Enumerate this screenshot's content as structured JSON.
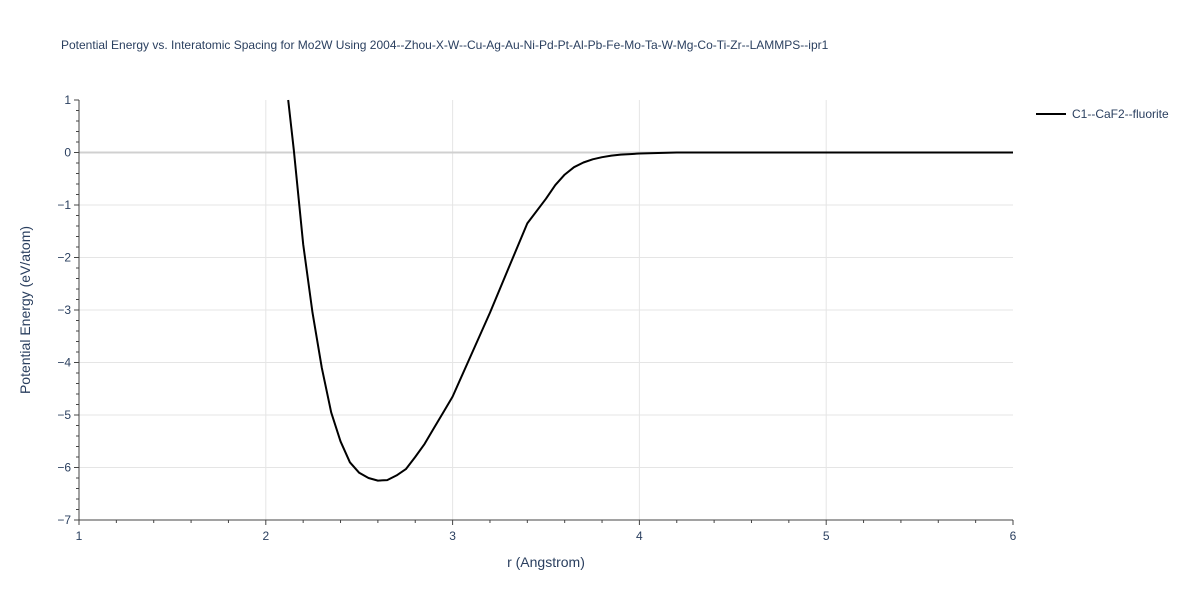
{
  "chart_data": {
    "type": "line",
    "title": "Potential Energy vs. Interatomic Spacing for Mo2W Using 2004--Zhou-X-W--Cu-Ag-Au-Ni-Pd-Pt-Al-Pb-Fe-Mo-Ta-W-Mg-Co-Ti-Zr--LAMMPS--ipr1",
    "xlabel": "r (Angstrom)",
    "ylabel": "Potential Energy (eV/atom)",
    "xlim": [
      1,
      6
    ],
    "ylim": [
      -7,
      1
    ],
    "xticks": [
      1,
      2,
      3,
      4,
      5,
      6
    ],
    "yticks": [
      1,
      0,
      -1,
      -2,
      -3,
      -4,
      -5,
      -6,
      -7
    ],
    "grid": true,
    "legend_position": "top-right",
    "series": [
      {
        "name": "C1--CaF2--fluorite",
        "color": "#000000",
        "x": [
          2.12,
          2.15,
          2.2,
          2.25,
          2.3,
          2.35,
          2.4,
          2.45,
          2.5,
          2.55,
          2.6,
          2.65,
          2.7,
          2.75,
          2.8,
          2.85,
          2.9,
          2.95,
          3.0,
          3.1,
          3.2,
          3.3,
          3.4,
          3.5,
          3.55,
          3.6,
          3.65,
          3.7,
          3.75,
          3.8,
          3.85,
          3.9,
          3.95,
          4.0,
          4.1,
          4.2,
          4.3,
          4.5,
          5.0,
          5.5,
          6.0
        ],
        "y": [
          1.0,
          0.05,
          -1.75,
          -3.05,
          -4.1,
          -4.95,
          -5.5,
          -5.9,
          -6.1,
          -6.2,
          -6.25,
          -6.24,
          -6.15,
          -6.03,
          -5.8,
          -5.55,
          -5.25,
          -4.95,
          -4.65,
          -3.85,
          -3.05,
          -2.2,
          -1.35,
          -0.88,
          -0.62,
          -0.42,
          -0.28,
          -0.19,
          -0.13,
          -0.09,
          -0.06,
          -0.04,
          -0.03,
          -0.02,
          -0.01,
          0.0,
          0.0,
          0.0,
          0.0,
          0.0,
          0.0
        ]
      }
    ]
  }
}
